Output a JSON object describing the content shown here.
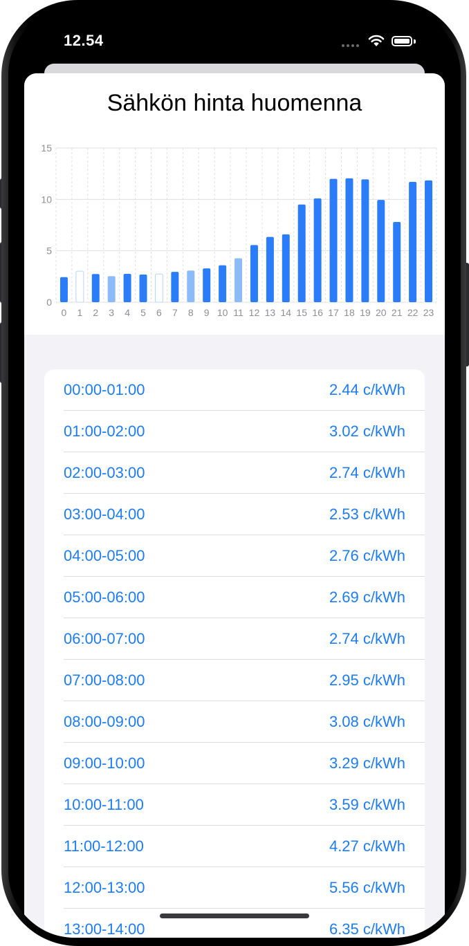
{
  "status_bar": {
    "time": "12.54",
    "wifi_icon": "wifi-icon",
    "battery_icon": "battery-icon"
  },
  "title": "Sähkön hinta huomenna",
  "chart_data": {
    "type": "bar",
    "title": "Sähkön hinta huomenna",
    "categories": [
      "0",
      "1",
      "2",
      "3",
      "4",
      "5",
      "6",
      "7",
      "8",
      "9",
      "10",
      "11",
      "12",
      "13",
      "14",
      "15",
      "16",
      "17",
      "18",
      "19",
      "20",
      "21",
      "22",
      "23"
    ],
    "values": [
      2.44,
      3.02,
      2.74,
      2.53,
      2.76,
      2.69,
      2.74,
      2.95,
      3.08,
      3.29,
      3.59,
      4.27,
      5.56,
      6.35,
      6.6,
      9.5,
      10.1,
      12.0,
      12.05,
      11.95,
      9.95,
      7.8,
      11.7,
      11.85
    ],
    "ylim": [
      0,
      15
    ],
    "yticks": [
      0,
      5,
      10,
      15
    ],
    "xlabel": "",
    "ylabel": "",
    "grid": true,
    "colors": {
      "bar": "#2a7cf8",
      "bar_light": "#8dbaf8",
      "grid": "#e0e0e0",
      "tick": "#8e8e93"
    }
  },
  "price_list": [
    {
      "label": "00:00-01:00",
      "value": "2.44 c/kWh"
    },
    {
      "label": "01:00-02:00",
      "value": "3.02 c/kWh"
    },
    {
      "label": "02:00-03:00",
      "value": "2.74 c/kWh"
    },
    {
      "label": "03:00-04:00",
      "value": "2.53 c/kWh"
    },
    {
      "label": "04:00-05:00",
      "value": "2.76 c/kWh"
    },
    {
      "label": "05:00-06:00",
      "value": "2.69 c/kWh"
    },
    {
      "label": "06:00-07:00",
      "value": "2.74 c/kWh"
    },
    {
      "label": "07:00-08:00",
      "value": "2.95 c/kWh"
    },
    {
      "label": "08:00-09:00",
      "value": "3.08 c/kWh"
    },
    {
      "label": "09:00-10:00",
      "value": "3.29 c/kWh"
    },
    {
      "label": "10:00-11:00",
      "value": "3.59 c/kWh"
    },
    {
      "label": "11:00-12:00",
      "value": "4.27 c/kWh"
    },
    {
      "label": "12:00-13:00",
      "value": "5.56 c/kWh"
    }
  ],
  "partial_row": {
    "label": "13:00-14:00",
    "value": "6.35 c/kWh"
  }
}
